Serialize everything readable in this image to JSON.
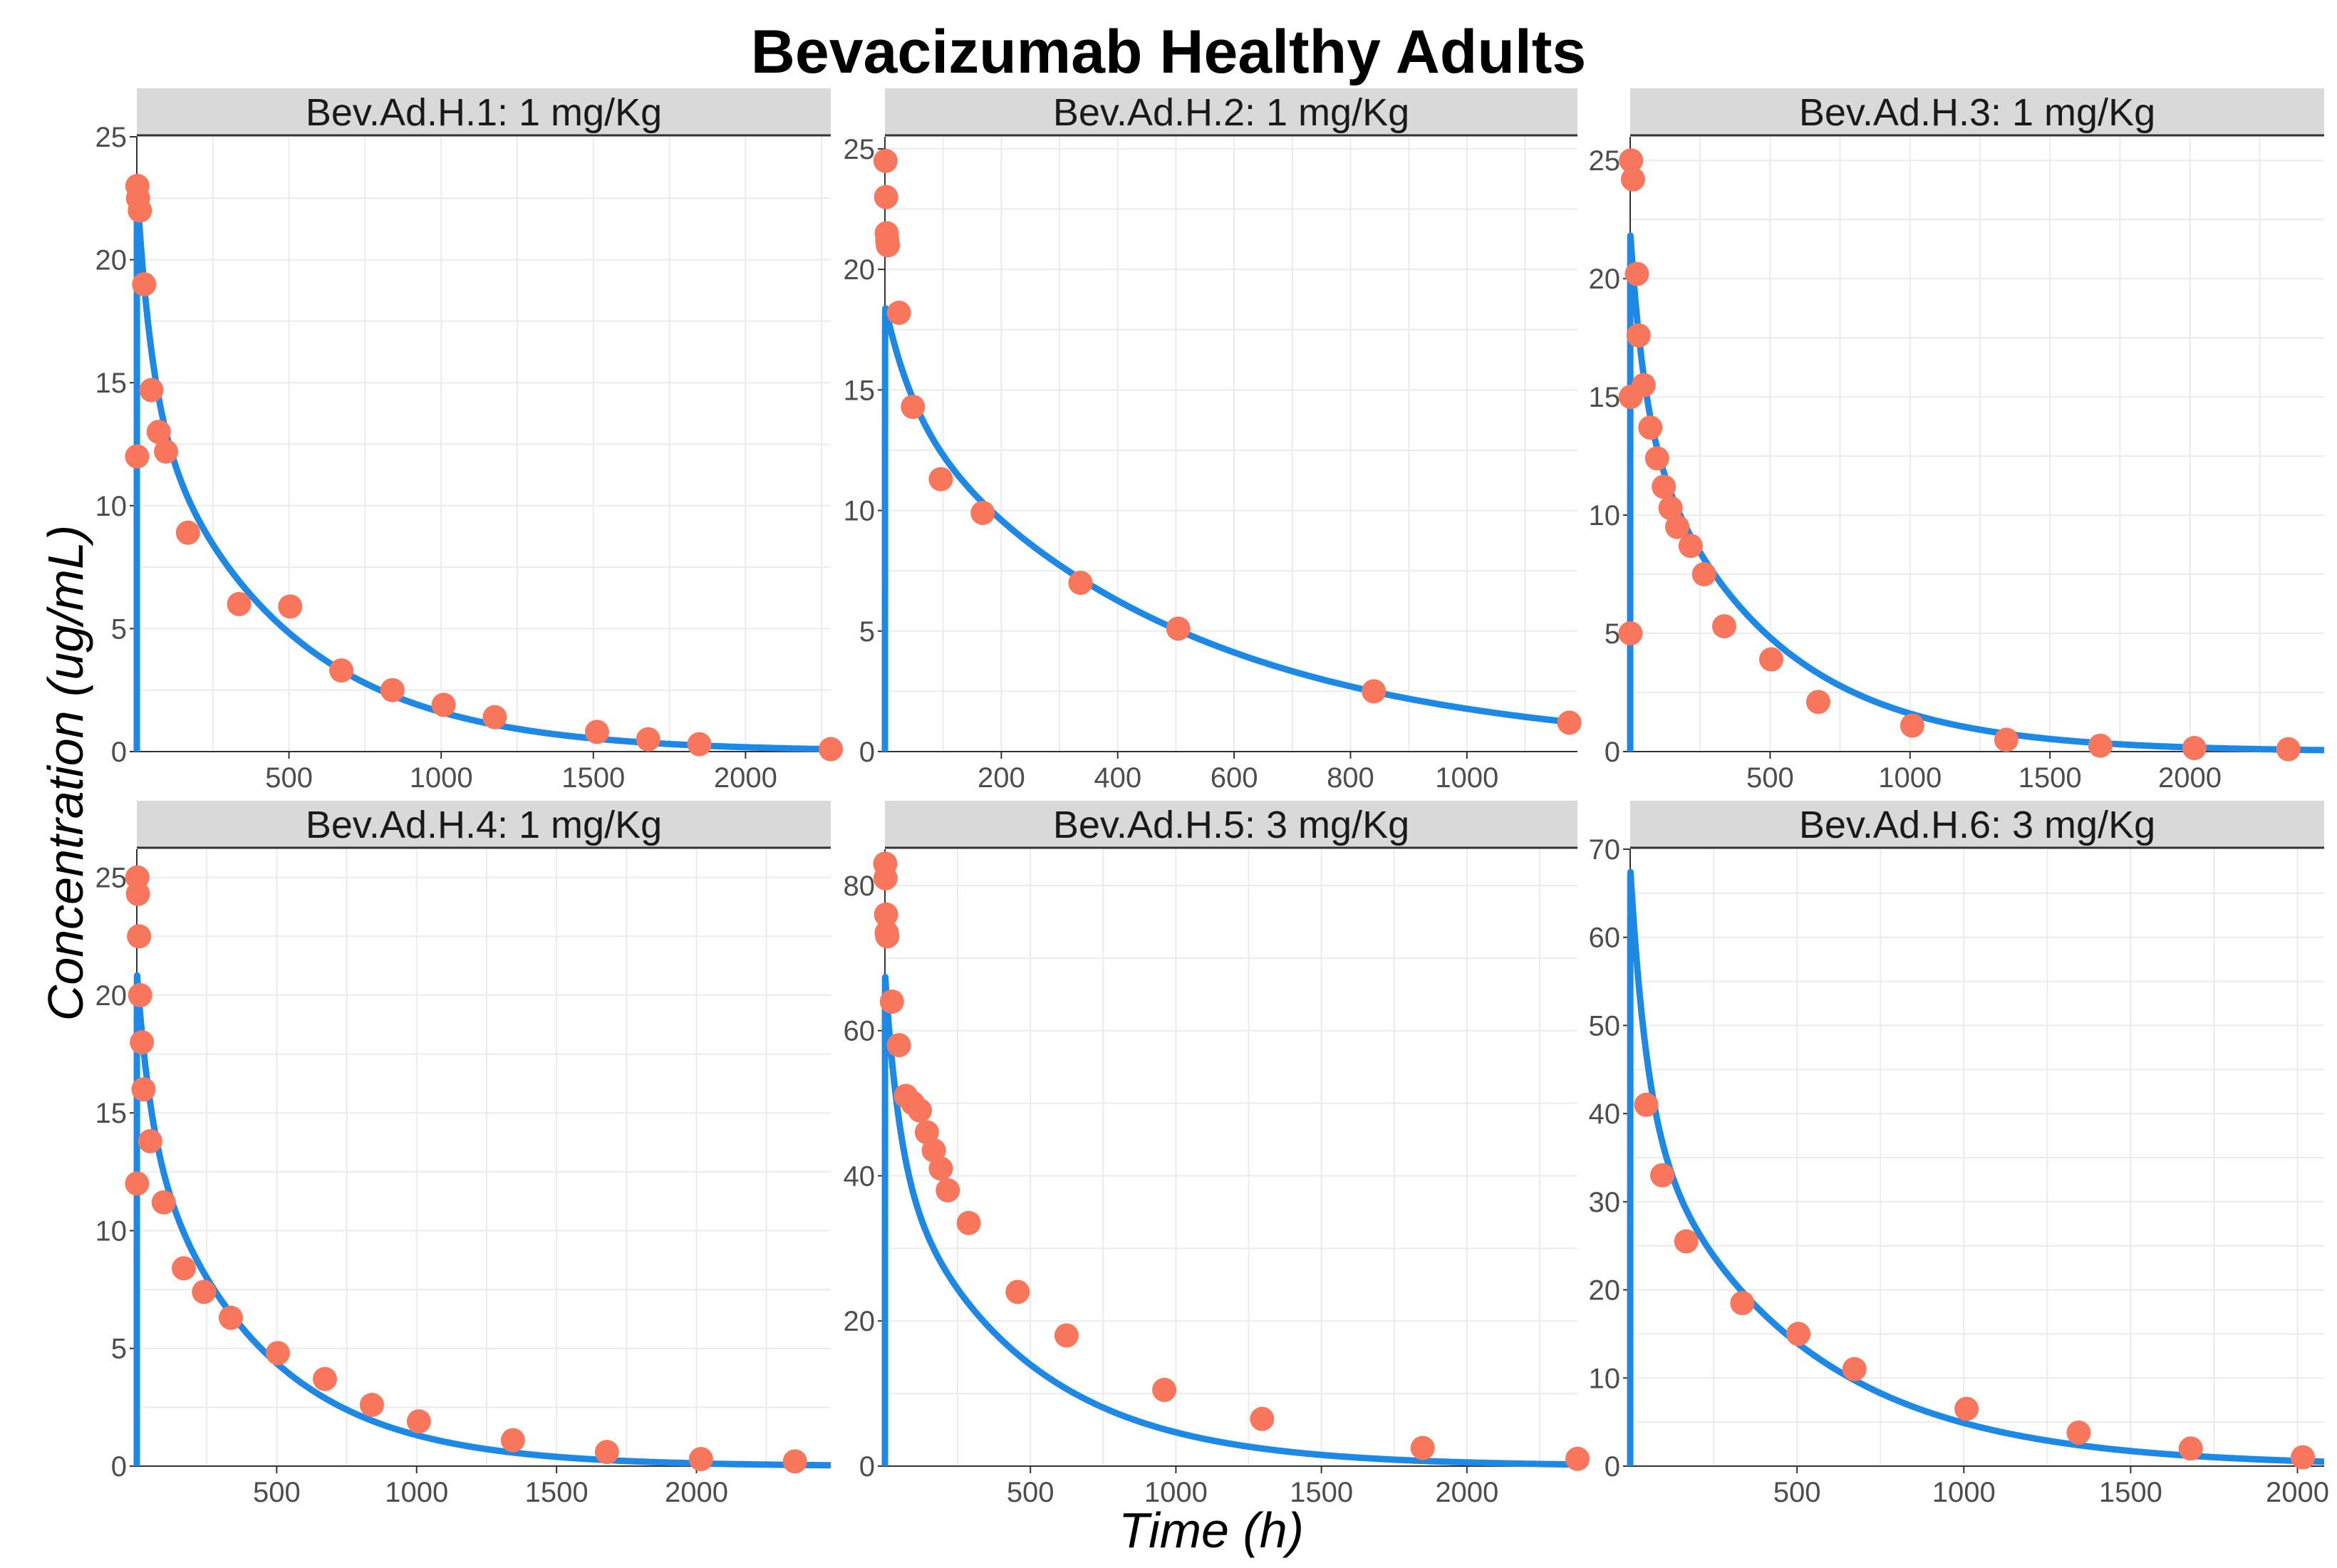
{
  "chart": {
    "title": "Bevacizumab Healthy Adults",
    "xlabel": "Time (h)",
    "ylabel": "Concentration (ug/mL)"
  },
  "colors": {
    "observed": "#F8765C",
    "model": "#1E88E5",
    "strip_bg": "#D9D9D9",
    "grid": "#EBEBEB",
    "tick_text": "#4D4D4D"
  },
  "chart_data": [
    {
      "type": "scatter",
      "panel": "Bev.Ad.H.1: 1 mg/Kg",
      "xlim": [
        0,
        2280
      ],
      "ylim": [
        0,
        25
      ],
      "xticks": [
        500,
        1000,
        1500,
        2000
      ],
      "yticks": [
        0,
        5,
        10,
        15,
        20,
        25
      ],
      "observed": {
        "x": [
          1,
          2,
          4,
          10,
          24,
          48,
          72,
          96,
          168,
          336,
          504,
          672,
          840,
          1008,
          1176,
          1512,
          1680,
          1848,
          2280
        ],
        "y": [
          12,
          23,
          22.5,
          22,
          19,
          14.7,
          13,
          12.2,
          8.9,
          6,
          5.9,
          3.3,
          2.5,
          1.9,
          1.4,
          0.8,
          0.5,
          0.3,
          0.1
        ]
      },
      "model": {
        "A": 8.5,
        "a": 0.02,
        "B": 14.5,
        "b": 0.0022,
        "ka": 8
      }
    },
    {
      "type": "scatter",
      "panel": "Bev.Ad.H.2: 1 mg/Kg",
      "xlim": [
        0,
        1190
      ],
      "ylim": [
        0,
        25.5
      ],
      "xticks": [
        200,
        400,
        600,
        800,
        1000
      ],
      "yticks": [
        0,
        5,
        10,
        15,
        20,
        25
      ],
      "observed": {
        "x": [
          1,
          2,
          3,
          4,
          5,
          24,
          48,
          96,
          168,
          336,
          504,
          840,
          1176
        ],
        "y": [
          24.5,
          23,
          21.5,
          21.2,
          21,
          18.2,
          14.3,
          11.3,
          9.9,
          7,
          5.1,
          2.5,
          1.2
        ]
      },
      "model": {
        "A": 4,
        "a": 0.02,
        "B": 14.5,
        "b": 0.0021,
        "ka": 8
      }
    },
    {
      "type": "scatter",
      "panel": "Bev.Ad.H.3: 1 mg/Kg",
      "xlim": [
        0,
        2480
      ],
      "ylim": [
        0,
        26
      ],
      "xticks": [
        500,
        1000,
        1500,
        2000
      ],
      "yticks": [
        0,
        5,
        10,
        15,
        20,
        25
      ],
      "observed": {
        "x": [
          1,
          2,
          3,
          10,
          24,
          30,
          48,
          72,
          96,
          120,
          144,
          168,
          216,
          264,
          336,
          504,
          672,
          1008,
          1344,
          1680,
          2016,
          2352
        ],
        "y": [
          5,
          15,
          25,
          24.2,
          20.2,
          17.6,
          15.5,
          13.7,
          12.4,
          11.2,
          10.3,
          9.5,
          8.7,
          7.5,
          5.3,
          3.9,
          2.1,
          1.1,
          0.5,
          0.25,
          0.15,
          0.1
        ]
      },
      "model": {
        "A": 7.5,
        "a": 0.02,
        "B": 14.5,
        "b": 0.0022,
        "ka": 8
      }
    },
    {
      "type": "scatter",
      "panel": "Bev.Ad.H.4: 1 mg/Kg",
      "xlim": [
        0,
        2480
      ],
      "ylim": [
        0,
        26.2
      ],
      "xticks": [
        500,
        1000,
        1500,
        2000
      ],
      "yticks": [
        0,
        5,
        10,
        15,
        20,
        25
      ],
      "observed": {
        "x": [
          1,
          2,
          4,
          8,
          12,
          18,
          24,
          48,
          96,
          168,
          240,
          336,
          504,
          672,
          840,
          1008,
          1344,
          1680,
          2016,
          2352
        ],
        "y": [
          12,
          25,
          24.3,
          22.5,
          20,
          18,
          16,
          13.8,
          11.2,
          8.4,
          7.4,
          6.3,
          4.8,
          3.7,
          2.6,
          1.9,
          1.1,
          0.6,
          0.3,
          0.2
        ]
      },
      "model": {
        "A": 6.5,
        "a": 0.02,
        "B": 14.5,
        "b": 0.0024,
        "ka": 8
      }
    },
    {
      "type": "scatter",
      "panel": "Bev.Ad.H.5: 3 mg/Kg",
      "xlim": [
        0,
        2380
      ],
      "ylim": [
        0,
        85
      ],
      "xticks": [
        500,
        1000,
        1500,
        2000
      ],
      "yticks": [
        0,
        20,
        40,
        60,
        80
      ],
      "observed": {
        "x": [
          1,
          2,
          4,
          6,
          8,
          24,
          48,
          72,
          96,
          120,
          144,
          168,
          192,
          216,
          288,
          456,
          624,
          960,
          1296,
          1848,
          2380
        ],
        "y": [
          83,
          81,
          76,
          73.5,
          73,
          64,
          58,
          51,
          50,
          49,
          46,
          43.5,
          41,
          38,
          33.5,
          24,
          18,
          10.5,
          6.5,
          2.5,
          1
        ]
      },
      "model": {
        "A": 26,
        "a": 0.02,
        "B": 42,
        "b": 0.0022,
        "ka": 8
      }
    },
    {
      "type": "scatter",
      "panel": "Bev.Ad.H.6: 3 mg/Kg",
      "xlim": [
        0,
        2080
      ],
      "ylim": [
        0,
        70
      ],
      "xticks": [
        500,
        1000,
        1500,
        2000
      ],
      "yticks": [
        0,
        10,
        20,
        30,
        40,
        50,
        60,
        70
      ],
      "observed": {
        "x": [
          48,
          96,
          168,
          336,
          504,
          672,
          1008,
          1344,
          1680,
          2016
        ],
        "y": [
          41,
          33,
          25.5,
          18.5,
          15,
          11,
          6.5,
          3.8,
          2,
          1
        ]
      },
      "model": {
        "A": 28,
        "a": 0.02,
        "B": 40,
        "b": 0.0021,
        "ka": 8
      }
    }
  ]
}
